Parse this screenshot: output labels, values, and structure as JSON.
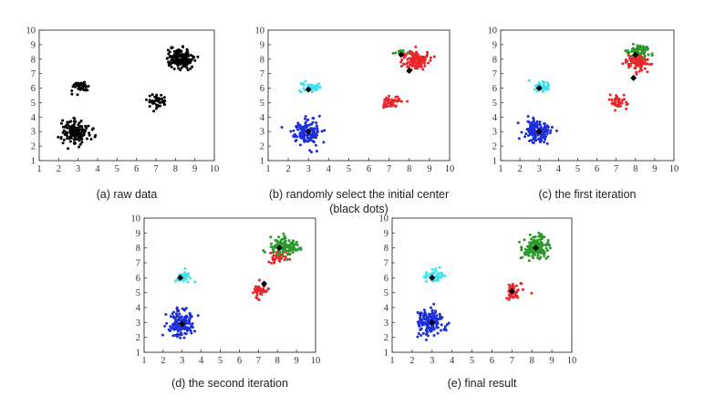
{
  "chart_data": [
    {
      "type": "scatter",
      "caption": "(a)  raw data",
      "xlim": [
        1,
        10
      ],
      "ylim": [
        1,
        10
      ],
      "xticks": [
        1,
        2,
        3,
        4,
        5,
        6,
        7,
        8,
        9,
        10
      ],
      "yticks": [
        1,
        2,
        3,
        4,
        5,
        6,
        7,
        8,
        9,
        10
      ],
      "grid": false,
      "clusters": [
        {
          "color": "#000000",
          "cx": 2.9,
          "cy": 3.0,
          "sx": 0.35,
          "sy": 0.42,
          "n": 150
        },
        {
          "color": "#000000",
          "cx": 3.1,
          "cy": 6.1,
          "sx": 0.22,
          "sy": 0.18,
          "n": 45
        },
        {
          "color": "#000000",
          "cx": 7.1,
          "cy": 5.1,
          "sx": 0.25,
          "sy": 0.22,
          "n": 45
        },
        {
          "color": "#000000",
          "cx": 8.2,
          "cy": 8.0,
          "sx": 0.35,
          "sy": 0.35,
          "n": 150
        }
      ],
      "centers": []
    },
    {
      "type": "scatter",
      "caption": "(b)   randomly select the initial center",
      "caption2": "(black dots)",
      "xlim": [
        1,
        10
      ],
      "ylim": [
        1,
        10
      ],
      "xticks": [
        1,
        2,
        3,
        4,
        5,
        6,
        7,
        8,
        9,
        10
      ],
      "yticks": [
        1,
        2,
        3,
        4,
        5,
        6,
        7,
        8,
        9,
        10
      ],
      "grid": false,
      "clusters": [
        {
          "color": "#1f2fd6",
          "cx": 2.9,
          "cy": 3.0,
          "sx": 0.35,
          "sy": 0.42,
          "n": 150
        },
        {
          "color": "#3fe0ee",
          "cx": 3.1,
          "cy": 6.1,
          "sx": 0.22,
          "sy": 0.18,
          "n": 45
        },
        {
          "color": "#e8262b",
          "cx": 7.1,
          "cy": 5.1,
          "sx": 0.25,
          "sy": 0.22,
          "n": 45
        },
        {
          "color": "#e8262b",
          "cx": 8.3,
          "cy": 7.9,
          "sx": 0.32,
          "sy": 0.32,
          "n": 125
        },
        {
          "color": "#2a9a2a",
          "cx": 7.6,
          "cy": 8.5,
          "sx": 0.15,
          "sy": 0.12,
          "n": 12
        }
      ],
      "centers": [
        [
          3.0,
          3.0
        ],
        [
          3.0,
          5.9
        ],
        [
          7.6,
          8.3
        ],
        [
          8.0,
          7.2
        ]
      ]
    },
    {
      "type": "scatter",
      "caption": "(c)   the first iteration",
      "xlim": [
        1,
        10
      ],
      "ylim": [
        1,
        10
      ],
      "xticks": [
        1,
        2,
        3,
        4,
        5,
        6,
        7,
        8,
        9,
        10
      ],
      "yticks": [
        1,
        2,
        3,
        4,
        5,
        6,
        7,
        8,
        9,
        10
      ],
      "grid": false,
      "clusters": [
        {
          "color": "#1f2fd6",
          "cx": 2.9,
          "cy": 3.0,
          "sx": 0.35,
          "sy": 0.42,
          "n": 150
        },
        {
          "color": "#3fe0ee",
          "cx": 3.1,
          "cy": 6.1,
          "sx": 0.22,
          "sy": 0.18,
          "n": 45
        },
        {
          "color": "#e8262b",
          "cx": 7.1,
          "cy": 5.1,
          "sx": 0.25,
          "sy": 0.22,
          "n": 45
        },
        {
          "color": "#e8262b",
          "cx": 8.2,
          "cy": 7.7,
          "sx": 0.32,
          "sy": 0.28,
          "n": 95
        },
        {
          "color": "#2a9a2a",
          "cx": 8.2,
          "cy": 8.6,
          "sx": 0.32,
          "sy": 0.18,
          "n": 60
        }
      ],
      "centers": [
        [
          3.0,
          3.0
        ],
        [
          3.0,
          6.0
        ],
        [
          8.0,
          8.3
        ],
        [
          7.9,
          6.7
        ]
      ]
    },
    {
      "type": "scatter",
      "caption": "(d)   the second iteration",
      "xlim": [
        1,
        10
      ],
      "ylim": [
        1,
        10
      ],
      "xticks": [
        1,
        2,
        3,
        4,
        5,
        6,
        7,
        8,
        9,
        10
      ],
      "yticks": [
        1,
        2,
        3,
        4,
        5,
        6,
        7,
        8,
        9,
        10
      ],
      "grid": false,
      "clusters": [
        {
          "color": "#1f2fd6",
          "cx": 2.9,
          "cy": 3.0,
          "sx": 0.35,
          "sy": 0.42,
          "n": 150
        },
        {
          "color": "#3fe0ee",
          "cx": 3.1,
          "cy": 6.1,
          "sx": 0.22,
          "sy": 0.18,
          "n": 45
        },
        {
          "color": "#e8262b",
          "cx": 7.1,
          "cy": 5.1,
          "sx": 0.25,
          "sy": 0.22,
          "n": 45
        },
        {
          "color": "#e8262b",
          "cx": 8.0,
          "cy": 7.4,
          "sx": 0.3,
          "sy": 0.18,
          "n": 30
        },
        {
          "color": "#2a9a2a",
          "cx": 8.3,
          "cy": 8.1,
          "sx": 0.35,
          "sy": 0.28,
          "n": 120
        }
      ],
      "centers": [
        [
          3.0,
          2.9
        ],
        [
          2.9,
          6.0
        ],
        [
          8.1,
          8.0
        ],
        [
          7.3,
          5.6
        ]
      ]
    },
    {
      "type": "scatter",
      "caption": "(e)   final result",
      "xlim": [
        1,
        10
      ],
      "ylim": [
        1,
        10
      ],
      "xticks": [
        1,
        2,
        3,
        4,
        5,
        6,
        7,
        8,
        9,
        10
      ],
      "yticks": [
        1,
        2,
        3,
        4,
        5,
        6,
        7,
        8,
        9,
        10
      ],
      "grid": false,
      "clusters": [
        {
          "color": "#1f2fd6",
          "cx": 2.9,
          "cy": 3.0,
          "sx": 0.35,
          "sy": 0.42,
          "n": 150
        },
        {
          "color": "#3fe0ee",
          "cx": 3.1,
          "cy": 6.1,
          "sx": 0.22,
          "sy": 0.18,
          "n": 45
        },
        {
          "color": "#e8262b",
          "cx": 7.1,
          "cy": 5.1,
          "sx": 0.25,
          "sy": 0.22,
          "n": 45
        },
        {
          "color": "#2a9a2a",
          "cx": 8.2,
          "cy": 8.0,
          "sx": 0.35,
          "sy": 0.35,
          "n": 150
        }
      ],
      "centers": [
        [
          3.0,
          3.0
        ],
        [
          3.0,
          6.0
        ],
        [
          7.0,
          5.1
        ],
        [
          8.2,
          8.0
        ]
      ]
    }
  ]
}
